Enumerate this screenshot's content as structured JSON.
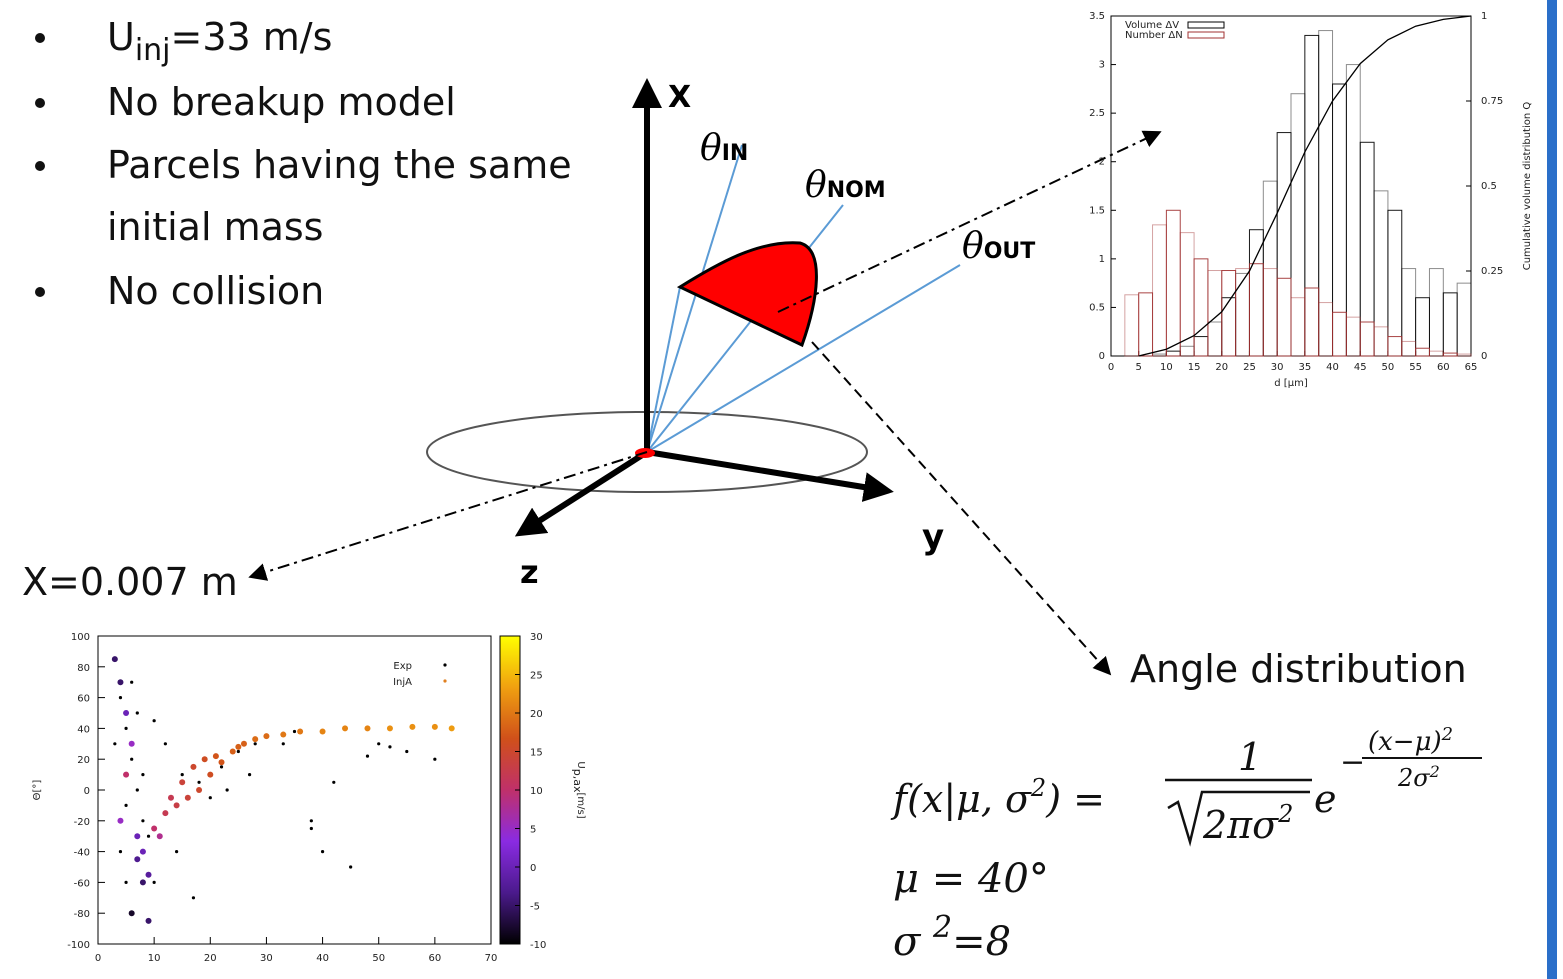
{
  "bullets": [
    {
      "text": "U",
      "sub": "inj",
      "tail": "=33 m/s"
    },
    {
      "text": "No breakup model"
    },
    {
      "text": "Parcels having the same",
      "line2": "initial mass"
    },
    {
      "text": "No collision"
    }
  ],
  "diagram": {
    "axes": {
      "x": "X",
      "y": "y",
      "z": "z"
    },
    "angles": [
      {
        "symbol": "θ",
        "sub": "IN"
      },
      {
        "symbol": "θ",
        "sub": "NOM"
      },
      {
        "symbol": "θ",
        "sub": "OUT"
      }
    ]
  },
  "position_label": "X=0.007 m",
  "angle_distribution": {
    "title": "Angle distribution",
    "formula": {
      "lhs": "f(x|μ, σ",
      "lhs_sup": "2",
      "lhs_close": ") =",
      "numerator": "1",
      "denominator": "2πσ",
      "denominator_sup": "2",
      "base": "e",
      "exp_sign": "−",
      "exp_num": "(x−μ)",
      "exp_num_sup": "2",
      "exp_den": "2σ",
      "exp_den_sup": "2"
    },
    "mu": "μ = 40°",
    "sigma": {
      "symbol": "σ ",
      "sup": "2",
      "tail": "=8"
    }
  },
  "chart_data": [
    {
      "type": "histogram",
      "xlabel": "d [μm]",
      "y2label": "Cumulative volume distribution Q",
      "bins": [
        2.5,
        5,
        7.5,
        10,
        12.5,
        15,
        17.5,
        20,
        22.5,
        25,
        27.5,
        30,
        32.5,
        35,
        37.5,
        40,
        42.5,
        45,
        47.5,
        50,
        52.5,
        55,
        57.5,
        60,
        62.5,
        65
      ],
      "series": [
        {
          "name": "Volume ΔV",
          "color": "#000000",
          "values": [
            0,
            0,
            0.02,
            0.05,
            0.1,
            0.2,
            0.35,
            0.6,
            0.85,
            1.3,
            1.8,
            2.3,
            2.7,
            3.3,
            3.35,
            2.8,
            3.0,
            2.2,
            1.7,
            1.5,
            0.9,
            0.6,
            0.9,
            0.65,
            0.75
          ]
        },
        {
          "name": "Number ΔN",
          "color": "#a03030",
          "values": [
            0.63,
            0.65,
            1.35,
            1.5,
            1.27,
            1.0,
            0.88,
            0.88,
            0.9,
            0.95,
            0.9,
            0.8,
            0.6,
            0.7,
            0.55,
            0.45,
            0.4,
            0.35,
            0.3,
            0.2,
            0.15,
            0.08,
            0.05,
            0.03,
            0.02
          ]
        }
      ],
      "cumulative": {
        "x": [
          5,
          10,
          15,
          20,
          25,
          30,
          35,
          40,
          45,
          50,
          55,
          60,
          65
        ],
        "values": [
          0,
          0.02,
          0.06,
          0.13,
          0.25,
          0.42,
          0.6,
          0.75,
          0.86,
          0.93,
          0.97,
          0.99,
          1
        ],
        "axis": "y2",
        "color": "#000000"
      },
      "xlim": [
        0,
        65
      ],
      "xticks": [
        0,
        5,
        10,
        15,
        20,
        25,
        30,
        35,
        40,
        45,
        50,
        55,
        60,
        65
      ],
      "ylim": [
        0,
        3.5
      ],
      "yticks": [
        0,
        0.5,
        1,
        1.5,
        2,
        2.5,
        3,
        3.5
      ],
      "y2lim": [
        0,
        1
      ],
      "y2ticks": [
        0,
        0.25,
        0.5,
        0.75,
        1
      ]
    },
    {
      "type": "scatter",
      "ylabel": "Θ[°]",
      "series": [
        {
          "name": "Exp",
          "color": "#000000",
          "x": [
            3,
            4,
            5,
            6,
            7,
            8,
            4,
            5,
            6,
            7,
            3,
            5,
            8,
            9,
            10,
            12,
            15,
            18,
            20,
            22,
            25,
            28,
            30,
            35,
            38,
            40,
            45,
            50,
            55,
            60,
            38,
            42,
            48,
            52,
            10,
            14,
            17,
            23,
            27,
            33
          ],
          "values": [
            85,
            60,
            40,
            20,
            0,
            -20,
            -40,
            -60,
            70,
            50,
            30,
            -10,
            10,
            -30,
            45,
            30,
            10,
            5,
            -5,
            15,
            25,
            30,
            35,
            38,
            -20,
            -40,
            -50,
            30,
            25,
            20,
            -25,
            5,
            22,
            28,
            -60,
            -40,
            -70,
            0,
            10,
            30
          ]
        },
        {
          "name": "InjA",
          "color": "#e08020",
          "x": [
            3,
            4,
            5,
            6,
            7,
            8,
            9,
            6,
            7,
            5,
            4,
            10,
            12,
            14,
            16,
            18,
            20,
            22,
            24,
            26,
            28,
            30,
            33,
            36,
            40,
            44,
            48,
            52,
            56,
            60,
            63,
            8,
            9,
            11,
            13,
            15,
            17,
            19,
            21,
            25
          ],
          "values": [
            85,
            70,
            50,
            30,
            -30,
            -60,
            -85,
            -80,
            -45,
            10,
            -20,
            -25,
            -15,
            -10,
            -5,
            0,
            10,
            18,
            25,
            30,
            33,
            35,
            36,
            38,
            38,
            40,
            40,
            40,
            41,
            41,
            40,
            -40,
            -55,
            -30,
            -5,
            5,
            15,
            20,
            22,
            28
          ],
          "color_values": [
            -5,
            -5,
            0,
            5,
            0,
            -5,
            -5,
            -8,
            -3,
            10,
            5,
            10,
            12,
            13,
            14,
            15,
            16,
            17,
            18,
            18,
            19,
            19,
            20,
            20,
            21,
            21,
            21,
            22,
            22,
            22,
            23,
            0,
            -2,
            8,
            12,
            14,
            15,
            16,
            17,
            18
          ]
        }
      ],
      "xlim": [
        0,
        70
      ],
      "xticks": [
        0,
        10,
        20,
        30,
        40,
        50,
        60,
        70
      ],
      "ylim": [
        -100,
        100
      ],
      "yticks": [
        -100,
        -80,
        -60,
        -40,
        -20,
        0,
        20,
        40,
        60,
        80,
        100
      ],
      "colorbar": {
        "label": "U",
        "label_sub": "p,ax",
        "label_tail": "[m/s]",
        "clim": [
          -10,
          30
        ],
        "ticks": [
          -10,
          -5,
          0,
          5,
          10,
          15,
          20,
          25,
          30
        ],
        "colormap": [
          "#000000",
          "#4b1a8c",
          "#8a2be2",
          "#c0306a",
          "#d0501a",
          "#f0a010",
          "#ffff00"
        ]
      }
    }
  ]
}
